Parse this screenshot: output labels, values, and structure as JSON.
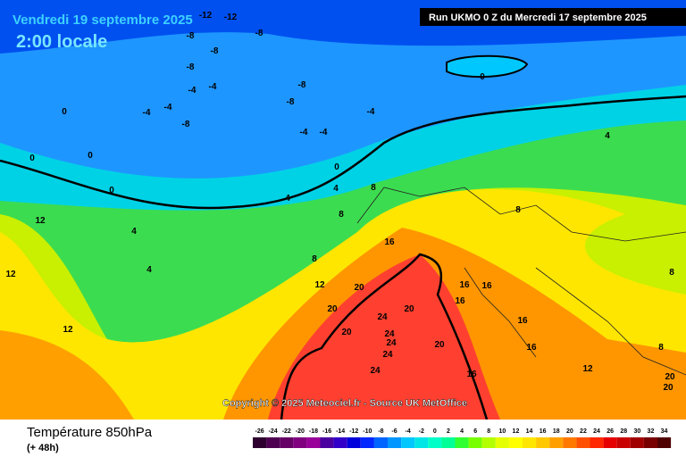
{
  "header": {
    "date": "Vendredi 19 septembre 2025",
    "time": "2:00 locale",
    "run": "Run UKMO 0 Z du Mercredi 17 septembre 2025"
  },
  "copyright": "Copyright © 2025 Meteociel.fr - Source UK MetOffice",
  "footer": {
    "title": "Température 850hPa",
    "subtitle": "(+ 48h)"
  },
  "scale": {
    "values": [
      -26,
      -24,
      -22,
      -20,
      -18,
      -16,
      -14,
      -12,
      -10,
      -8,
      -6,
      -4,
      -2,
      0,
      2,
      4,
      6,
      8,
      10,
      12,
      14,
      16,
      18,
      20,
      22,
      24,
      26,
      28,
      30,
      32,
      34
    ],
    "colors": [
      "#2d0030",
      "#4d0050",
      "#660066",
      "#800080",
      "#990099",
      "#4b00a0",
      "#3200c8",
      "#0000dc",
      "#0028ff",
      "#0064ff",
      "#0096ff",
      "#00c8ff",
      "#00e6e6",
      "#00ffc8",
      "#00ff96",
      "#32ff32",
      "#78ff00",
      "#b4ff00",
      "#e6ff00",
      "#ffff00",
      "#ffe600",
      "#ffc800",
      "#ffa000",
      "#ff7800",
      "#ff5000",
      "#ff2800",
      "#e60000",
      "#c80000",
      "#a00000",
      "#780000",
      "#500000"
    ]
  },
  "map_labels": [
    -12,
    -12,
    -8,
    -8,
    -8,
    -8,
    -4,
    -4,
    -8,
    -8,
    -4,
    -4,
    0,
    -4,
    -4,
    0,
    0,
    0,
    0,
    4,
    4,
    4,
    4,
    4,
    8,
    8,
    8,
    12,
    12,
    12,
    16,
    16,
    16,
    16,
    20,
    20,
    20,
    20,
    24,
    24,
    24,
    24,
    24,
    20,
    16,
    16,
    16,
    12,
    12,
    8,
    8,
    8,
    20,
    20,
    -8,
    -4,
    0
  ]
}
